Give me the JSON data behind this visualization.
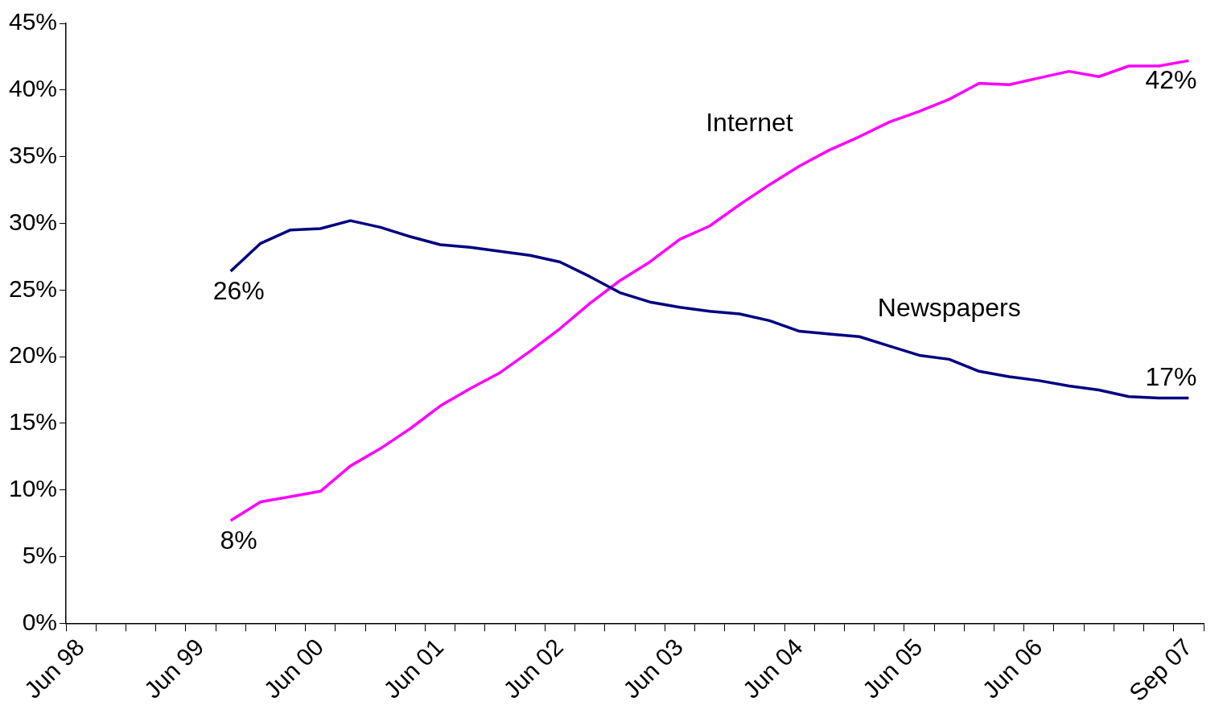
{
  "chart_data": {
    "type": "line",
    "categories": [
      "Jun 98",
      null,
      null,
      null,
      "Jun 99",
      null,
      null,
      null,
      "Jun 00",
      null,
      null,
      null,
      "Jun 01",
      null,
      null,
      null,
      "Jun 02",
      null,
      null,
      null,
      "Jun 03",
      null,
      null,
      null,
      "Jun 04",
      null,
      null,
      null,
      "Jun 05",
      null,
      null,
      null,
      "Jun 06",
      null,
      null,
      null,
      null,
      "Sep 07"
    ],
    "series": [
      {
        "name": "Newspapers",
        "color": "#000080",
        "values": [
          null,
          null,
          null,
          null,
          null,
          26.4,
          28.5,
          29.5,
          29.6,
          30.2,
          29.7,
          29.0,
          28.4,
          28.2,
          27.9,
          27.6,
          27.1,
          26.0,
          24.8,
          24.1,
          23.7,
          23.4,
          23.2,
          22.7,
          21.9,
          21.7,
          21.5,
          20.8,
          20.1,
          19.8,
          18.9,
          18.5,
          18.2,
          17.8,
          17.5,
          17.0,
          16.9,
          16.9
        ],
        "value_labels": [
          null,
          null,
          null,
          null,
          null,
          "26%",
          null,
          null,
          null,
          null,
          null,
          null,
          null,
          null,
          null,
          null,
          null,
          null,
          null,
          null,
          null,
          null,
          null,
          null,
          null,
          null,
          null,
          null,
          null,
          null,
          null,
          null,
          null,
          null,
          null,
          null,
          null,
          "17%"
        ]
      },
      {
        "name": "Internet",
        "color": "#ff00ff",
        "values": [
          null,
          null,
          null,
          null,
          null,
          7.7,
          9.1,
          9.5,
          9.9,
          11.8,
          13.1,
          14.6,
          16.3,
          17.6,
          18.8,
          20.4,
          22.1,
          24.0,
          25.7,
          27.1,
          28.8,
          29.8,
          31.4,
          32.9,
          34.3,
          35.5,
          36.5,
          37.6,
          38.4,
          39.3,
          40.5,
          40.4,
          40.9,
          41.4,
          41.0,
          41.8,
          41.8,
          42.2
        ],
        "value_labels": [
          null,
          null,
          null,
          null,
          null,
          "8%",
          null,
          null,
          null,
          null,
          null,
          null,
          null,
          null,
          null,
          null,
          null,
          null,
          null,
          null,
          null,
          null,
          null,
          null,
          null,
          null,
          null,
          null,
          null,
          null,
          null,
          null,
          null,
          null,
          null,
          null,
          null,
          "42%"
        ]
      }
    ],
    "ylim": [
      0,
      45
    ],
    "yticks": [
      {
        "value": 0,
        "label": "0%"
      },
      {
        "value": 5,
        "label": "5%"
      },
      {
        "value": 10,
        "label": "10%"
      },
      {
        "value": 15,
        "label": "15%"
      },
      {
        "value": 20,
        "label": "20%"
      },
      {
        "value": 25,
        "label": "25%"
      },
      {
        "value": 30,
        "label": "30%"
      },
      {
        "value": 35,
        "label": "35%"
      },
      {
        "value": 40,
        "label": "40%"
      },
      {
        "value": 45,
        "label": "45%"
      }
    ],
    "grid": false,
    "legend": false,
    "marker": "none",
    "line_style": "solid"
  }
}
